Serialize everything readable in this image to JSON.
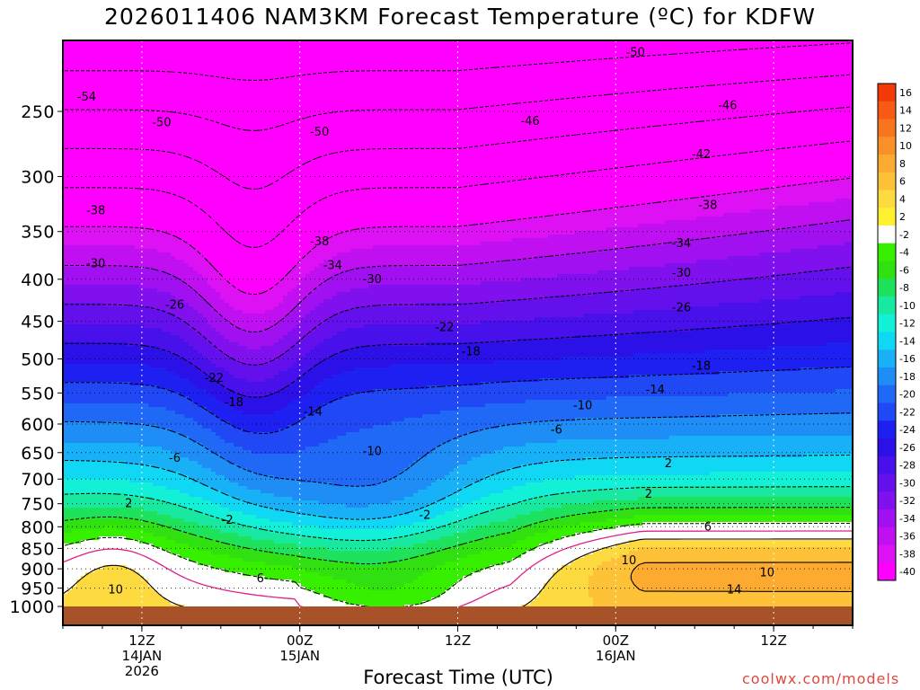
{
  "title": "2026011406 NAM3KM Forecast Temperature (ºC) for KDFW",
  "xlabel": "Forecast Time (UTC)",
  "credit": "coolwx.com/models",
  "chart_data": {
    "type": "heatmap",
    "title": "2026011406 NAM3KM Forecast Temperature (ºC) for KDFW",
    "xlabel": "Forecast Time (UTC)",
    "ylabel": "",
    "y_axis": "pressure (hPa), log scale, inverted",
    "ylim": [
      1000,
      200
    ],
    "y_ticks": [
      250,
      300,
      350,
      400,
      450,
      500,
      550,
      600,
      650,
      700,
      750,
      800,
      850,
      900,
      950,
      1000
    ],
    "x_range_hours": [
      6,
      66
    ],
    "x_ticks": [
      {
        "hour": 12,
        "labels": [
          "12Z",
          "14JAN",
          "2026"
        ]
      },
      {
        "hour": 24,
        "labels": [
          "00Z",
          "15JAN"
        ]
      },
      {
        "hour": 36,
        "labels": [
          "12Z"
        ]
      },
      {
        "hour": 48,
        "labels": [
          "00Z",
          "16JAN"
        ]
      },
      {
        "hour": 60,
        "labels": [
          "12Z"
        ]
      }
    ],
    "grid": "dotted",
    "colorbar": {
      "levels": [
        16,
        14,
        12,
        10,
        8,
        6,
        4,
        2,
        -2,
        -4,
        -6,
        -8,
        -10,
        -12,
        -14,
        -16,
        -18,
        -20,
        -22,
        -24,
        -26,
        -28,
        -30,
        -32,
        -34,
        -36,
        -38,
        -40
      ],
      "colors": [
        "#f43a08",
        "#f65a14",
        "#f87520",
        "#fa9028",
        "#fcaa30",
        "#fdc238",
        "#fdda40",
        "#fff030",
        "#ffffff",
        "#36f000",
        "#30e010",
        "#1ee25c",
        "#18e8a0",
        "#12f0d8",
        "#10d8f4",
        "#18b0f6",
        "#1e8ef6",
        "#2068f6",
        "#2048f4",
        "#1e20f2",
        "#2c10e8",
        "#4810ea",
        "#6410ec",
        "#8010ee",
        "#a010f0",
        "#c010f2",
        "#de10f4",
        "#ff00ff"
      ],
      "position": "right"
    },
    "contour_labels": [
      {
        "hour": 7.8,
        "pres": 240,
        "v": -54
      },
      {
        "hour": 13.5,
        "pres": 258,
        "v": -50
      },
      {
        "hour": 25.5,
        "pres": 265,
        "v": -50
      },
      {
        "hour": 49.5,
        "pres": 212,
        "v": -50
      },
      {
        "hour": 41.5,
        "pres": 257,
        "v": -46
      },
      {
        "hour": 56.5,
        "pres": 246,
        "v": -46
      },
      {
        "hour": 54.5,
        "pres": 282,
        "v": -42
      },
      {
        "hour": 8.5,
        "pres": 330,
        "v": -38
      },
      {
        "hour": 25.5,
        "pres": 360,
        "v": -38
      },
      {
        "hour": 55,
        "pres": 325,
        "v": -38
      },
      {
        "hour": 26.5,
        "pres": 385,
        "v": -34
      },
      {
        "hour": 53,
        "pres": 362,
        "v": -34
      },
      {
        "hour": 8.5,
        "pres": 383,
        "v": -30
      },
      {
        "hour": 29.5,
        "pres": 400,
        "v": -30
      },
      {
        "hour": 53,
        "pres": 393,
        "v": -30
      },
      {
        "hour": 14.5,
        "pres": 430,
        "v": -26
      },
      {
        "hour": 53,
        "pres": 433,
        "v": -26
      },
      {
        "hour": 35,
        "pres": 458,
        "v": -22
      },
      {
        "hour": 17.5,
        "pres": 528,
        "v": -22
      },
      {
        "hour": 37,
        "pres": 490,
        "v": -18
      },
      {
        "hour": 54.5,
        "pres": 510,
        "v": -18
      },
      {
        "hour": 51,
        "pres": 545,
        "v": -14
      },
      {
        "hour": 25,
        "pres": 580,
        "v": -14
      },
      {
        "hour": 19,
        "pres": 565,
        "v": -18
      },
      {
        "hour": 45.5,
        "pres": 570,
        "v": -10
      },
      {
        "hour": 29.5,
        "pres": 648,
        "v": -10
      },
      {
        "hour": 43.5,
        "pres": 610,
        "v": -6
      },
      {
        "hour": 14.5,
        "pres": 660,
        "v": -6
      },
      {
        "hour": 18.5,
        "pres": 785,
        "v": -2
      },
      {
        "hour": 33.5,
        "pres": 775,
        "v": -2
      },
      {
        "hour": 11,
        "pres": 750,
        "v": 2
      },
      {
        "hour": 52,
        "pres": 670,
        "v": 2
      },
      {
        "hour": 50.5,
        "pres": 730,
        "v": 2
      },
      {
        "hour": 55,
        "pres": 800,
        "v": 6
      },
      {
        "hour": 21,
        "pres": 925,
        "v": 6
      },
      {
        "hour": 49,
        "pres": 880,
        "v": 10
      },
      {
        "hour": 59.5,
        "pres": 910,
        "v": 10
      },
      {
        "hour": 10,
        "pres": 955,
        "v": 10
      },
      {
        "hour": 57,
        "pres": 955,
        "v": 14
      }
    ]
  }
}
